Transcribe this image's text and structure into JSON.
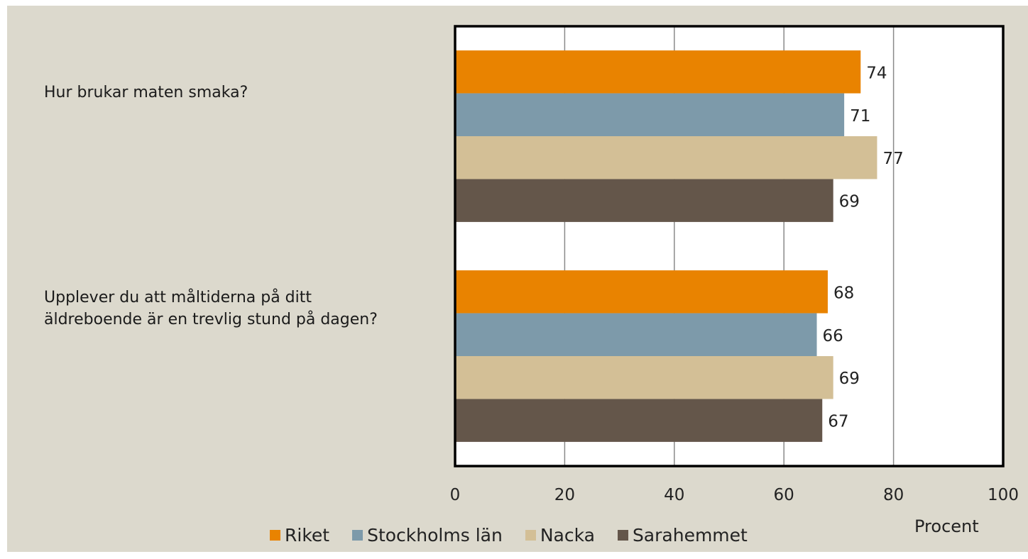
{
  "chart_data": {
    "type": "bar",
    "orientation": "horizontal",
    "categories": [
      "Hur brukar maten smaka?",
      "Upplever du att måltiderna på ditt äldreboende är en trevlig stund på dagen?"
    ],
    "series": [
      {
        "name": "Riket",
        "color": "#e98300",
        "values": [
          74,
          68
        ]
      },
      {
        "name": "Stockholms län",
        "color": "#7d9aaa",
        "values": [
          71,
          66
        ]
      },
      {
        "name": "Nacka",
        "color": "#d3bf96",
        "values": [
          77,
          69
        ]
      },
      {
        "name": "Sarahemmet",
        "color": "#64564a",
        "values": [
          69,
          67
        ]
      }
    ],
    "xlim": [
      0,
      100
    ],
    "x_ticks": [
      "0",
      "20",
      "40",
      "60",
      "80",
      "100"
    ],
    "xlabel": "Procent",
    "legend_position": "bottom",
    "grid": "vertical"
  }
}
